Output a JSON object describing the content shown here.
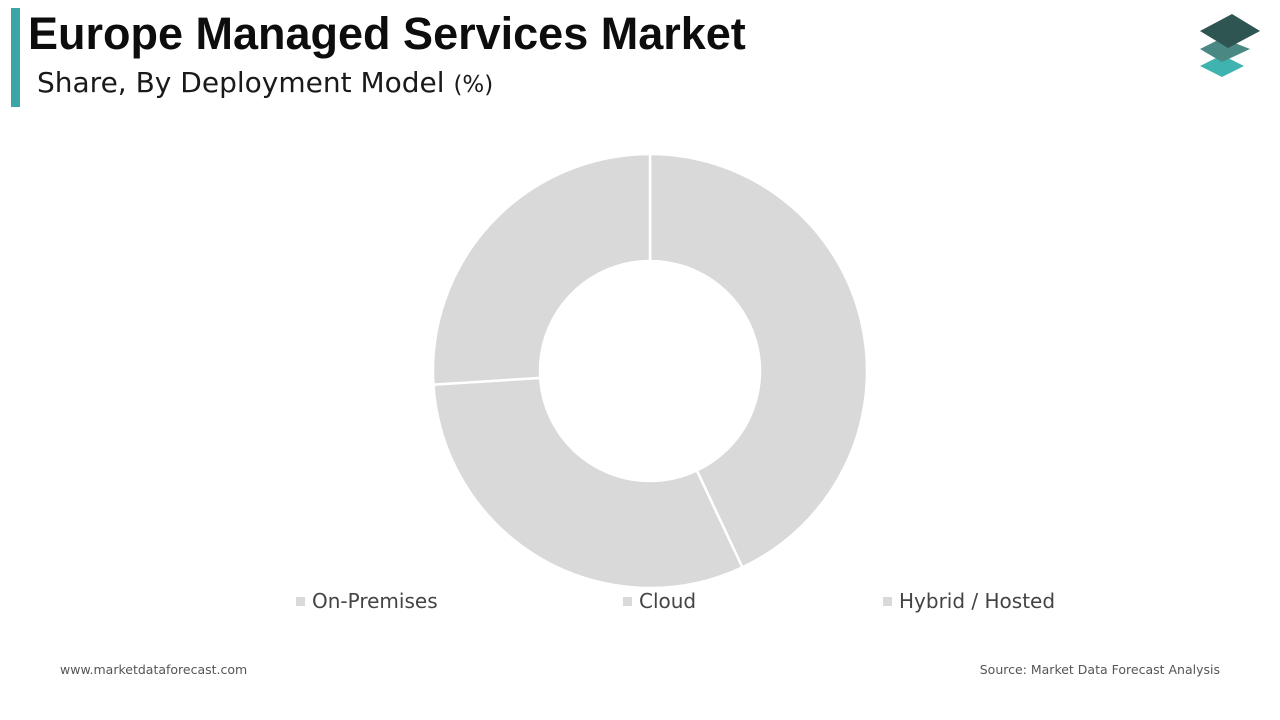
{
  "header": {
    "title": "Europe Managed Services Market",
    "subtitle": "Share, By Deployment Model",
    "unit": "(%)",
    "accent_color": "#3aa6a6"
  },
  "logo": {
    "icon": "stacked-layers-logo",
    "colors": [
      "#2f5552",
      "#4a8884",
      "#3fb3b0"
    ]
  },
  "chart_data": {
    "type": "pie",
    "donut": true,
    "categories": [
      "On-Premises",
      "Cloud",
      "Hybrid / Hosted"
    ],
    "values": [
      43,
      31,
      26
    ],
    "colors": [
      "#d9d9d9",
      "#d9d9d9",
      "#d9d9d9"
    ],
    "legend_position": "bottom"
  },
  "footer": {
    "website": "www.marketdataforecast.com",
    "source": "Source: Market Data Forecast Analysis"
  }
}
